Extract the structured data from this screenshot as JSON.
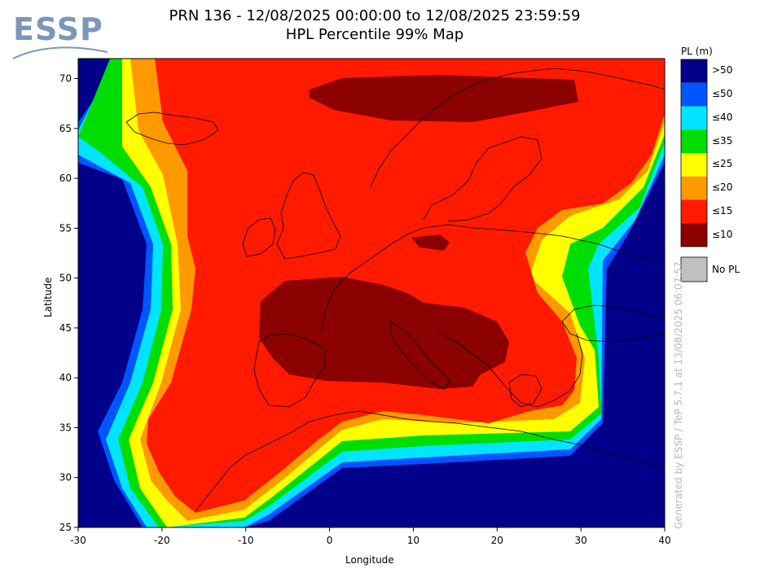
{
  "logo": {
    "text": "ESSP"
  },
  "title": {
    "line1": "PRN 136 - 12/08/2025 00:00:00 to 12/08/2025 23:59:59",
    "line2": "HPL Percentile 99% Map"
  },
  "axes": {
    "xlabel": "Longitude",
    "ylabel": "Latitude",
    "xticks": [
      "-30",
      "-20",
      "-10",
      "0",
      "10",
      "20",
      "30",
      "40"
    ],
    "yticks": [
      "70",
      "65",
      "60",
      "55",
      "50",
      "45",
      "40",
      "35",
      "30",
      "25"
    ]
  },
  "legend": {
    "title": "PL (m)",
    "items": [
      {
        "label": ">50",
        "color": "#00008b"
      },
      {
        "label": "≤50",
        "color": "#0055ff"
      },
      {
        "label": "≤40",
        "color": "#00e5ff"
      },
      {
        "label": "≤35",
        "color": "#00dd00"
      },
      {
        "label": "≤25",
        "color": "#ffff00"
      },
      {
        "label": "≤20",
        "color": "#ff9900"
      },
      {
        "label": "≤15",
        "color": "#ff1a00"
      },
      {
        "label": "≤10",
        "color": "#8b0000"
      }
    ],
    "nopl": {
      "label": "No PL",
      "color": "#c0c0c0"
    }
  },
  "watermark": "Generated by ESSP / TeP 5.7.1 at 13/08/2025 06:07:57"
}
